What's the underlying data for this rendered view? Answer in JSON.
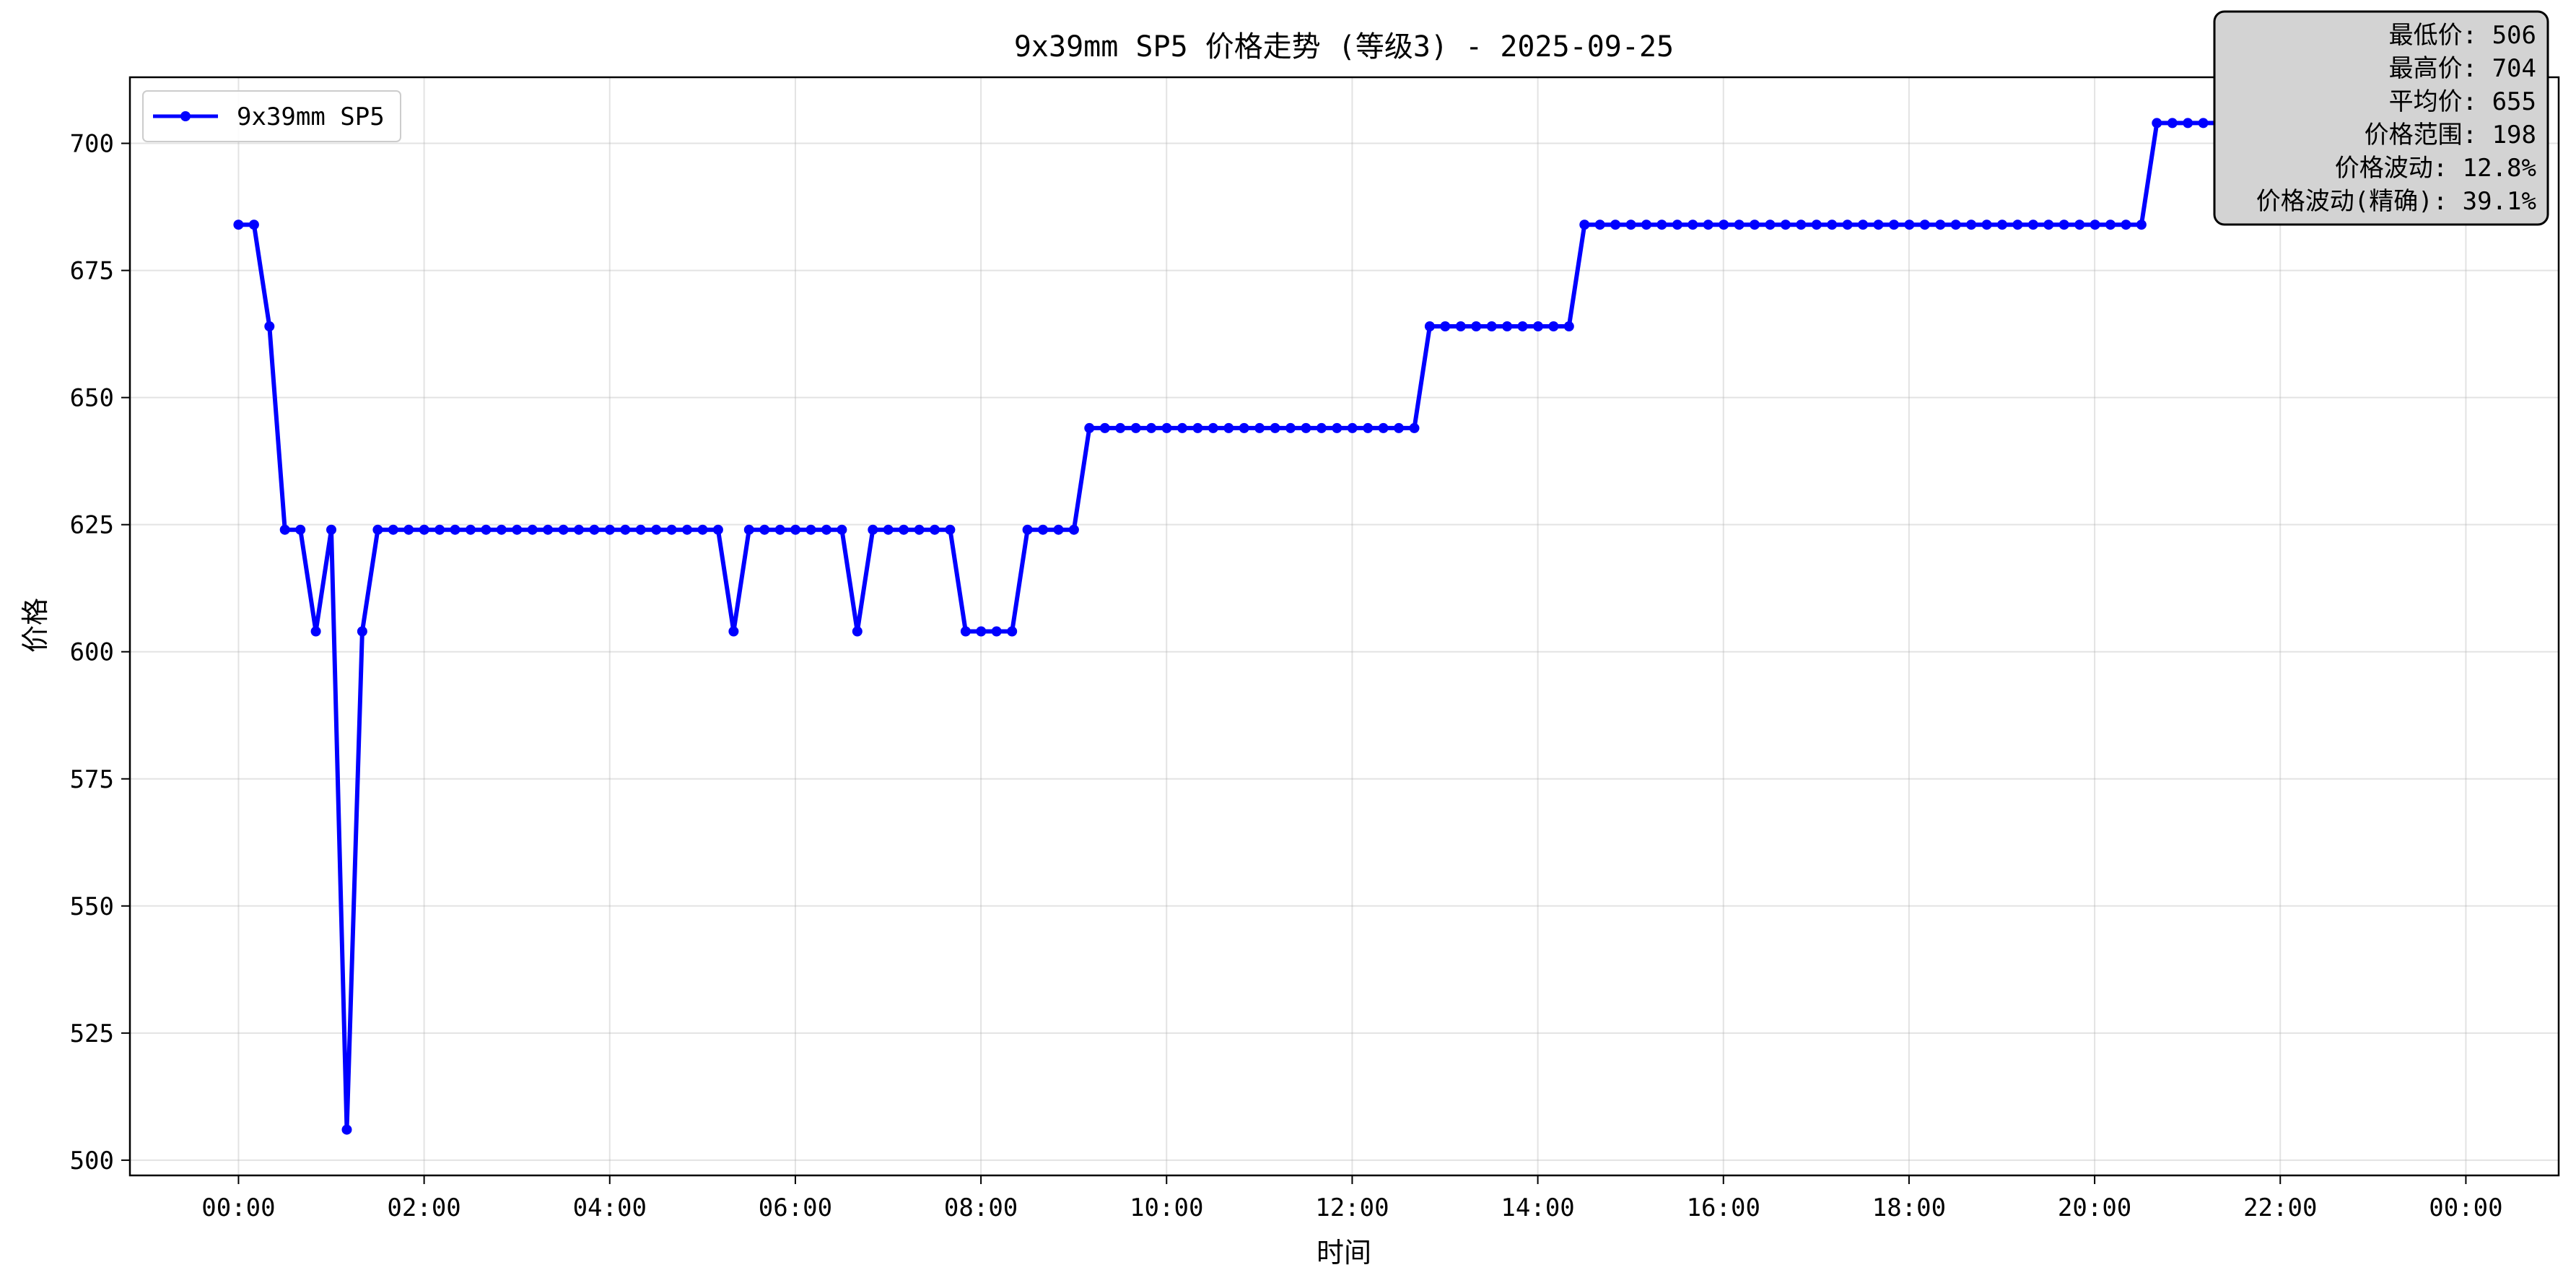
{
  "chart_data": {
    "type": "line",
    "title": "9x39mm SP5 价格走势 (等级3) - 2025-09-25",
    "xlabel": "时间",
    "ylabel": "价格",
    "xlim_hours": [
      -1.17,
      25.0
    ],
    "ylim": [
      497,
      713
    ],
    "x_ticks": [
      {
        "value": 0,
        "label": "00:00"
      },
      {
        "value": 2,
        "label": "02:00"
      },
      {
        "value": 4,
        "label": "04:00"
      },
      {
        "value": 6,
        "label": "06:00"
      },
      {
        "value": 8,
        "label": "08:00"
      },
      {
        "value": 10,
        "label": "10:00"
      },
      {
        "value": 12,
        "label": "12:00"
      },
      {
        "value": 14,
        "label": "14:00"
      },
      {
        "value": 16,
        "label": "16:00"
      },
      {
        "value": 18,
        "label": "18:00"
      },
      {
        "value": 20,
        "label": "20:00"
      },
      {
        "value": 22,
        "label": "22:00"
      },
      {
        "value": 24,
        "label": "00:00"
      }
    ],
    "y_ticks": [
      500,
      525,
      550,
      575,
      600,
      625,
      650,
      675,
      700
    ],
    "grid": true,
    "legend": {
      "position": "top-left",
      "entries": [
        "9x39mm SP5"
      ]
    },
    "series": [
      {
        "name": "9x39mm SP5",
        "color": "#0000ff",
        "marker": "circle",
        "x_interval_hours": 0.1667,
        "values": [
          684,
          684,
          664,
          624,
          624,
          604,
          624,
          506,
          604,
          624,
          624,
          624,
          624,
          624,
          624,
          624,
          624,
          624,
          624,
          624,
          624,
          624,
          624,
          624,
          624,
          624,
          624,
          624,
          624,
          624,
          624,
          624,
          604,
          624,
          624,
          624,
          624,
          624,
          624,
          624,
          604,
          624,
          624,
          624,
          624,
          624,
          624,
          604,
          604,
          604,
          604,
          624,
          624,
          624,
          624,
          644,
          644,
          644,
          644,
          644,
          644,
          644,
          644,
          644,
          644,
          644,
          644,
          644,
          644,
          644,
          644,
          644,
          644,
          644,
          644,
          644,
          644,
          664,
          664,
          664,
          664,
          664,
          664,
          664,
          664,
          664,
          664,
          684,
          684,
          684,
          684,
          684,
          684,
          684,
          684,
          684,
          684,
          684,
          684,
          684,
          684,
          684,
          684,
          684,
          684,
          684,
          684,
          684,
          684,
          684,
          684,
          684,
          684,
          684,
          684,
          684,
          684,
          684,
          684,
          684,
          684,
          684,
          684,
          684,
          704,
          704,
          704,
          704,
          704,
          704,
          704
        ]
      }
    ],
    "stats_box": {
      "position": "top-right",
      "lines": [
        "最低价: 506",
        "最高价: 704",
        "平均价: 655",
        "价格范围: 198",
        "价格波动: 12.8%",
        "价格波动(精确): 39.1%"
      ]
    }
  }
}
